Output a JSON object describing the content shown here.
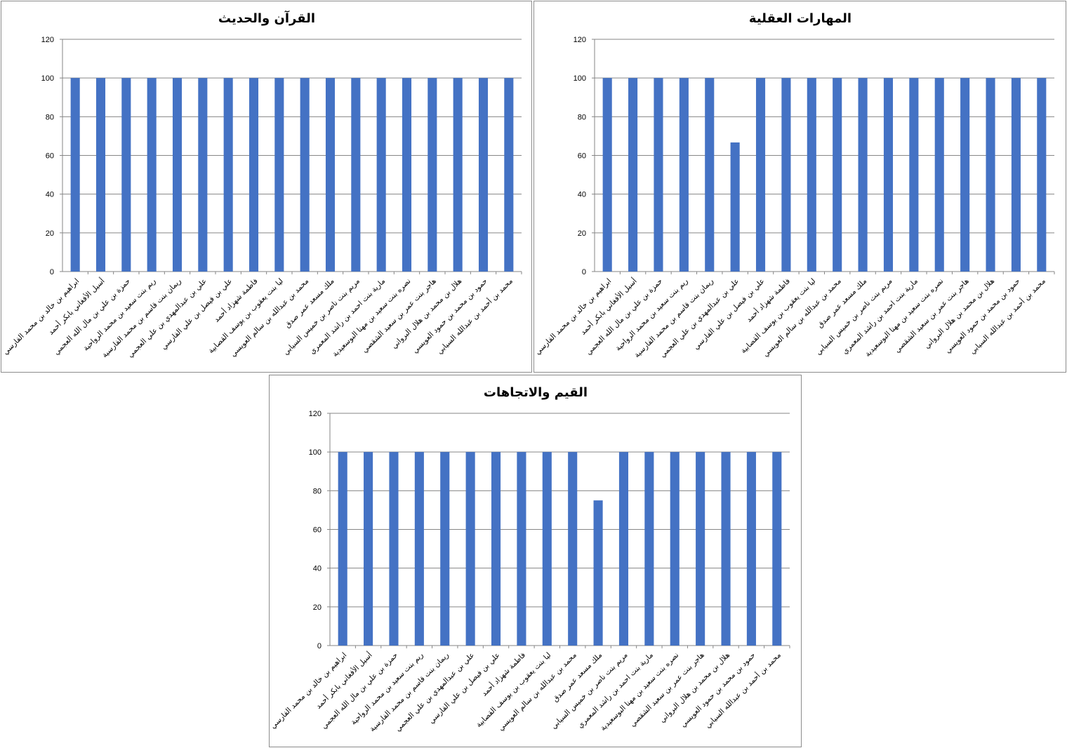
{
  "chart_data": [
    {
      "type": "bar",
      "title": "القرآن والحديث",
      "xlabel": "",
      "ylabel": "",
      "ylim": [
        0,
        120
      ],
      "yticks": [
        0,
        20,
        40,
        60,
        80,
        100,
        120
      ],
      "grid": true,
      "color": "#4472C4",
      "categories": [
        "ابراهيم بن خالد بن محمد الفارسي",
        "أسيل الأفغاني بابكر أحمد",
        "حمزة بن علي بن مال الله العجمي",
        "ريم بنت سعيد بن محمد الرواحية",
        "ريمان بنت قاسم بن محمد الفارسية",
        "علي بن عبدالمهدي بن علي العجمي",
        "علي بن فيصل بن علي الفارسي",
        "فاطمة شهزاد أحمد",
        "ليا بنت يعقوب بن يوسف القصابية",
        "محمد بن عبدالله بن سالم العويسي",
        "ملك مسعد عمر صدق",
        "مريم بنت ناصر بن خميس السيابي",
        "مارية بنت احمد بن راشد المعمري",
        "نصره بنت سعيد بن مهنا البوسعيدية",
        "هاجر بنت عمر بن سعيد الشقصي",
        "هلال بن محمد بن هلال البرواني",
        "حمود بن محمد بن حمود العويسي",
        "محمد بن أحمد بن عبدالله السيابي"
      ],
      "values": [
        100,
        100,
        100,
        100,
        100,
        100,
        100,
        100,
        100,
        100,
        100,
        100,
        100,
        100,
        100,
        100,
        100,
        100
      ]
    },
    {
      "type": "bar",
      "title": "المهارات العقلية",
      "xlabel": "",
      "ylabel": "",
      "ylim": [
        0,
        120
      ],
      "yticks": [
        0,
        20,
        40,
        60,
        80,
        100,
        120
      ],
      "grid": true,
      "color": "#4472C4",
      "categories": [
        "ابراهيم بن خالد بن محمد الفارسي",
        "أسيل الأفغاني بابكر أحمد",
        "حمزة بن علي بن مال الله العجمي",
        "ريم بنت سعيد بن محمد الرواحية",
        "ريمان بنت قاسم بن محمد الفارسية",
        "علي بن عبدالمهدي بن علي العجمي",
        "علي بن فيصل بن علي الفارسي",
        "فاطمة شهزاد أحمد",
        "ليا بنت يعقوب بن يوسف القصابية",
        "محمد بن عبدالله بن سالم العويسي",
        "ملك مسعد عمر صدق",
        "مريم بنت ناصر بن خميس السيابي",
        "مارية بنت احمد بن راشد المعمري",
        "نصره بنت سعيد بن مهنا البوسعيدية",
        "هاجر بنت عمر بن سعيد الشقصي",
        "هلال بن محمد بن هلال البرواني",
        "حمود بن محمد بن حمود العويسي",
        "محمد بن أحمد بن عبدالله السيابي"
      ],
      "values": [
        100,
        100,
        100,
        100,
        100,
        66.7,
        100,
        100,
        100,
        100,
        100,
        100,
        100,
        100,
        100,
        100,
        100,
        100
      ]
    },
    {
      "type": "bar",
      "title": "القيم والاتجاهات",
      "xlabel": "",
      "ylabel": "",
      "ylim": [
        0,
        120
      ],
      "yticks": [
        0,
        20,
        40,
        60,
        80,
        100,
        120
      ],
      "grid": true,
      "color": "#4472C4",
      "categories": [
        "ابراهيم بن خالد بن محمد الفارسي",
        "أسيل الأفغاني بابكر أحمد",
        "حمزة بن علي بن مال الله العجمي",
        "ريم بنت سعيد بن محمد الرواحية",
        "ريمان بنت قاسم بن محمد الفارسية",
        "علي بن عبدالمهدي بن علي العجمي",
        "علي بن فيصل بن علي الفارسي",
        "فاطمة شهزاد أحمد",
        "ليا بنت يعقوب بن يوسف القصابية",
        "محمد بن عبدالله بن سالم العويسي",
        "ملك مسعد عمر صدق",
        "مريم بنت ناصر بن خميس السيابي",
        "مارية بنت احمد بن راشد المعمري",
        "نصره بنت سعيد بن مهنا البوسعيدية",
        "هاجر بنت عمر بن سعيد الشقصي",
        "هلال بن محمد بن هلال البرواني",
        "حمود بن محمد بن حمود العويسي",
        "محمد بن أحمد بن عبدالله السيابي"
      ],
      "values": [
        100,
        100,
        100,
        100,
        100,
        100,
        100,
        100,
        100,
        100,
        75,
        100,
        100,
        100,
        100,
        100,
        100,
        100
      ]
    }
  ]
}
